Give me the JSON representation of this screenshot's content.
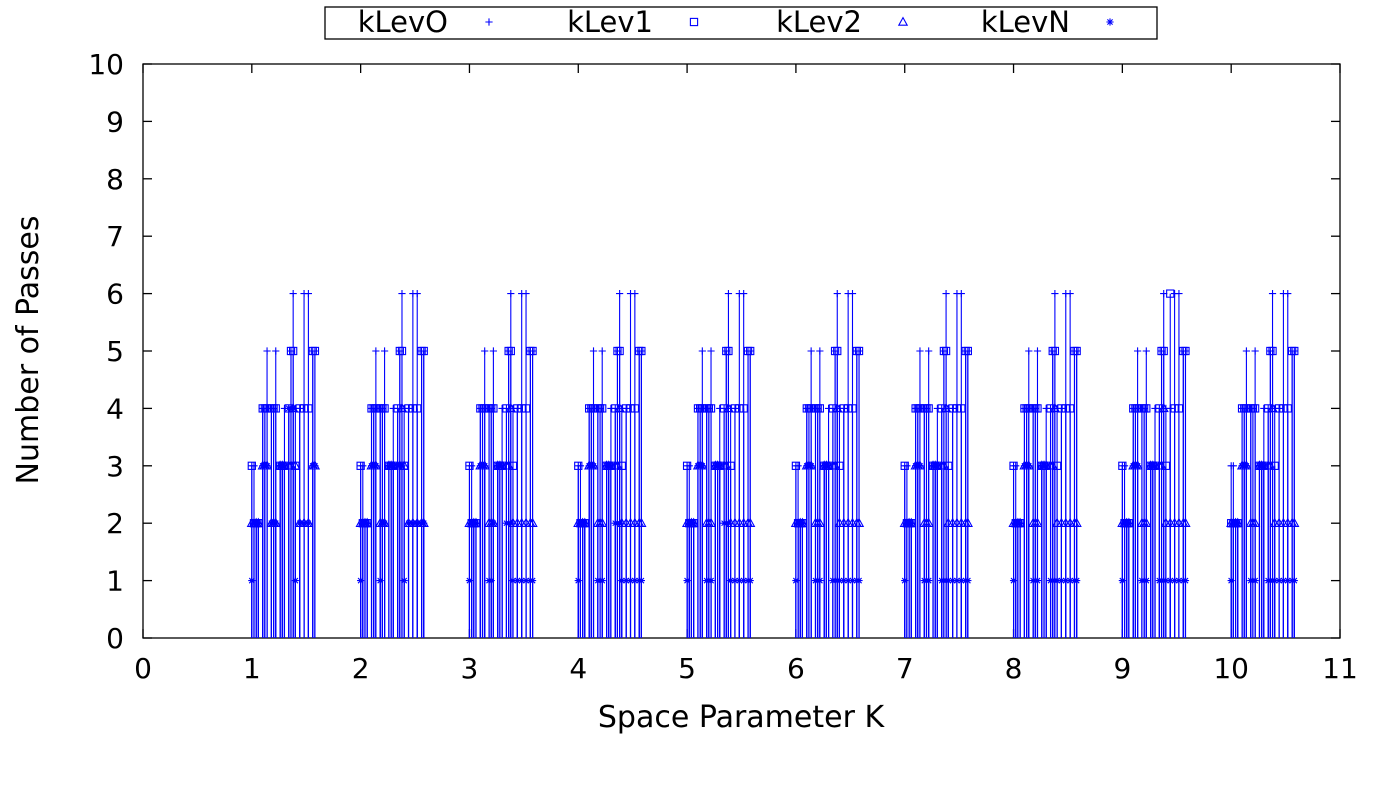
{
  "chart_data": {
    "type": "scatter",
    "title": "",
    "xlabel": "Space Parameter K",
    "ylabel": "Number of Passes",
    "xlim": [
      0,
      11
    ],
    "ylim": [
      0,
      10
    ],
    "xticks": [
      0,
      1,
      2,
      3,
      4,
      5,
      6,
      7,
      8,
      9,
      10,
      11
    ],
    "yticks": [
      0,
      1,
      2,
      3,
      4,
      5,
      6,
      7,
      8,
      9,
      10
    ],
    "grid": false,
    "legend_position": "top-center",
    "color": "#0000ff",
    "offsets": [
      0,
      0.02,
      0.04,
      0.06,
      0.1,
      0.12,
      0.14,
      0.18,
      0.2,
      0.22,
      0.26,
      0.28,
      0.3,
      0.34,
      0.36,
      0.38,
      0.4,
      0.44,
      0.48,
      0.52,
      0.56,
      0.58
    ],
    "series": [
      {
        "name": "kLevO",
        "marker": "plus",
        "groups": [
          [
            3,
            3,
            2,
            2,
            4,
            4,
            5,
            4,
            4,
            5,
            3,
            3,
            4,
            4,
            5,
            6,
            4,
            4,
            6,
            6,
            5,
            5
          ],
          [
            3,
            3,
            2,
            2,
            4,
            4,
            5,
            4,
            4,
            5,
            3,
            3,
            4,
            4,
            5,
            6,
            4,
            4,
            6,
            6,
            5,
            5
          ],
          [
            3,
            3,
            2,
            2,
            4,
            4,
            5,
            4,
            4,
            5,
            3,
            3,
            4,
            4,
            5,
            6,
            4,
            4,
            6,
            6,
            5,
            5
          ],
          [
            3,
            3,
            2,
            2,
            4,
            4,
            5,
            4,
            4,
            5,
            3,
            3,
            4,
            4,
            5,
            6,
            4,
            4,
            6,
            6,
            5,
            5
          ],
          [
            3,
            3,
            2,
            2,
            4,
            4,
            5,
            4,
            4,
            5,
            3,
            3,
            4,
            4,
            5,
            6,
            4,
            4,
            6,
            6,
            5,
            5
          ],
          [
            3,
            3,
            2,
            2,
            4,
            4,
            5,
            4,
            4,
            5,
            3,
            3,
            4,
            4,
            5,
            6,
            4,
            4,
            6,
            6,
            5,
            5
          ],
          [
            3,
            3,
            2,
            2,
            4,
            4,
            5,
            4,
            4,
            5,
            3,
            3,
            4,
            4,
            5,
            6,
            4,
            4,
            6,
            6,
            5,
            5
          ],
          [
            3,
            3,
            2,
            2,
            4,
            4,
            5,
            4,
            4,
            5,
            3,
            3,
            4,
            4,
            5,
            6,
            4,
            4,
            6,
            6,
            5,
            5
          ],
          [
            3,
            3,
            2,
            2,
            4,
            4,
            5,
            4,
            4,
            5,
            3,
            3,
            4,
            4,
            5,
            6,
            4,
            4,
            6,
            6,
            5,
            5
          ],
          [
            3,
            3,
            2,
            2,
            4,
            4,
            5,
            4,
            4,
            5,
            3,
            3,
            4,
            4,
            5,
            6,
            4,
            4,
            6,
            6,
            5,
            5
          ]
        ]
      },
      {
        "name": "kLev1",
        "marker": "square",
        "groups": [
          [
            3,
            2,
            2,
            2,
            4,
            4,
            4,
            4,
            4,
            4,
            3,
            3,
            3,
            4,
            5,
            5,
            3,
            4,
            4,
            4,
            5,
            5
          ],
          [
            3,
            2,
            2,
            2,
            4,
            4,
            4,
            4,
            4,
            4,
            3,
            3,
            3,
            4,
            5,
            5,
            3,
            4,
            4,
            4,
            5,
            5
          ],
          [
            3,
            2,
            2,
            2,
            4,
            4,
            4,
            4,
            4,
            4,
            3,
            3,
            3,
            4,
            5,
            5,
            3,
            4,
            4,
            4,
            5,
            5
          ],
          [
            3,
            2,
            2,
            2,
            4,
            4,
            4,
            4,
            4,
            4,
            3,
            3,
            3,
            4,
            5,
            5,
            3,
            4,
            4,
            4,
            5,
            5
          ],
          [
            3,
            2,
            2,
            2,
            4,
            4,
            4,
            4,
            4,
            4,
            3,
            3,
            3,
            4,
            5,
            5,
            3,
            4,
            4,
            4,
            5,
            5
          ],
          [
            3,
            2,
            2,
            2,
            4,
            4,
            4,
            4,
            4,
            4,
            3,
            3,
            3,
            4,
            5,
            5,
            3,
            4,
            4,
            4,
            5,
            5
          ],
          [
            3,
            2,
            2,
            2,
            4,
            4,
            4,
            4,
            4,
            4,
            3,
            3,
            3,
            4,
            5,
            5,
            3,
            4,
            4,
            4,
            5,
            5
          ],
          [
            3,
            2,
            2,
            2,
            4,
            4,
            4,
            4,
            4,
            4,
            3,
            3,
            3,
            4,
            5,
            5,
            3,
            4,
            4,
            4,
            5,
            5
          ],
          [
            3,
            2,
            2,
            2,
            4,
            4,
            4,
            4,
            4,
            4,
            3,
            3,
            3,
            4,
            5,
            5,
            3,
            6,
            4,
            4,
            5,
            5
          ],
          [
            2,
            2,
            2,
            2,
            4,
            4,
            4,
            4,
            4,
            4,
            3,
            3,
            3,
            4,
            5,
            5,
            3,
            4,
            4,
            4,
            5,
            5
          ]
        ]
      },
      {
        "name": "kLev2",
        "marker": "triangle",
        "groups": [
          [
            2,
            2,
            2,
            2,
            3,
            3,
            3,
            2,
            2,
            2,
            3,
            3,
            3,
            3,
            3,
            4,
            3,
            2,
            2,
            2,
            3,
            3
          ],
          [
            2,
            2,
            2,
            2,
            3,
            3,
            3,
            2,
            2,
            2,
            3,
            3,
            3,
            3,
            3,
            4,
            3,
            2,
            2,
            2,
            2,
            2
          ],
          [
            2,
            2,
            2,
            2,
            3,
            3,
            3,
            2,
            2,
            2,
            3,
            3,
            3,
            3,
            3,
            4,
            2,
            2,
            2,
            2,
            2,
            2
          ],
          [
            2,
            2,
            2,
            2,
            3,
            3,
            3,
            2,
            2,
            2,
            3,
            3,
            3,
            3,
            3,
            4,
            2,
            2,
            2,
            2,
            2,
            2
          ],
          [
            2,
            2,
            2,
            2,
            3,
            3,
            3,
            2,
            2,
            2,
            3,
            3,
            3,
            3,
            3,
            4,
            2,
            2,
            2,
            2,
            2,
            2
          ],
          [
            2,
            2,
            2,
            2,
            3,
            3,
            3,
            2,
            2,
            2,
            3,
            3,
            3,
            3,
            3,
            4,
            2,
            2,
            2,
            2,
            2,
            2
          ],
          [
            2,
            2,
            2,
            2,
            3,
            3,
            3,
            2,
            2,
            2,
            3,
            3,
            3,
            3,
            3,
            4,
            2,
            2,
            2,
            2,
            2,
            2
          ],
          [
            2,
            2,
            2,
            2,
            3,
            3,
            3,
            2,
            2,
            2,
            3,
            3,
            3,
            3,
            3,
            4,
            2,
            2,
            2,
            2,
            2,
            2
          ],
          [
            2,
            2,
            2,
            2,
            3,
            3,
            3,
            2,
            2,
            2,
            3,
            3,
            3,
            3,
            3,
            4,
            2,
            2,
            2,
            2,
            2,
            2
          ],
          [
            2,
            2,
            2,
            2,
            3,
            3,
            3,
            2,
            2,
            2,
            3,
            3,
            3,
            3,
            3,
            4,
            2,
            2,
            2,
            2,
            2,
            2
          ]
        ]
      },
      {
        "name": "kLevN",
        "marker": "star",
        "groups": [
          [
            1,
            2,
            2,
            2,
            3,
            3,
            3,
            2,
            2,
            2,
            3,
            3,
            3,
            4,
            4,
            4,
            1,
            2,
            2,
            2,
            3,
            3
          ],
          [
            1,
            2,
            2,
            2,
            3,
            3,
            3,
            1,
            2,
            2,
            3,
            3,
            3,
            3,
            3,
            3,
            1,
            2,
            2,
            2,
            2,
            2
          ],
          [
            1,
            2,
            2,
            2,
            3,
            3,
            3,
            1,
            1,
            2,
            3,
            3,
            3,
            2,
            2,
            2,
            1,
            1,
            1,
            1,
            1,
            1
          ],
          [
            1,
            2,
            2,
            2,
            3,
            3,
            3,
            1,
            1,
            1,
            3,
            3,
            3,
            2,
            2,
            2,
            1,
            1,
            1,
            1,
            1,
            1
          ],
          [
            1,
            2,
            2,
            2,
            3,
            3,
            3,
            1,
            1,
            1,
            3,
            3,
            3,
            2,
            2,
            2,
            1,
            1,
            1,
            1,
            1,
            1
          ],
          [
            1,
            2,
            2,
            2,
            3,
            3,
            3,
            1,
            1,
            1,
            3,
            3,
            3,
            1,
            1,
            1,
            1,
            1,
            1,
            1,
            1,
            1
          ],
          [
            1,
            2,
            2,
            2,
            3,
            3,
            3,
            1,
            1,
            1,
            3,
            3,
            3,
            1,
            1,
            1,
            1,
            1,
            1,
            1,
            1,
            1
          ],
          [
            1,
            2,
            2,
            2,
            3,
            3,
            3,
            1,
            1,
            1,
            3,
            3,
            3,
            1,
            1,
            1,
            1,
            1,
            1,
            1,
            1,
            1
          ],
          [
            1,
            2,
            2,
            2,
            3,
            3,
            3,
            1,
            1,
            1,
            3,
            3,
            3,
            1,
            1,
            1,
            1,
            1,
            1,
            1,
            1,
            1
          ],
          [
            1,
            2,
            2,
            2,
            3,
            3,
            3,
            1,
            1,
            1,
            3,
            3,
            3,
            1,
            1,
            1,
            1,
            1,
            1,
            1,
            1,
            1
          ]
        ]
      }
    ]
  }
}
